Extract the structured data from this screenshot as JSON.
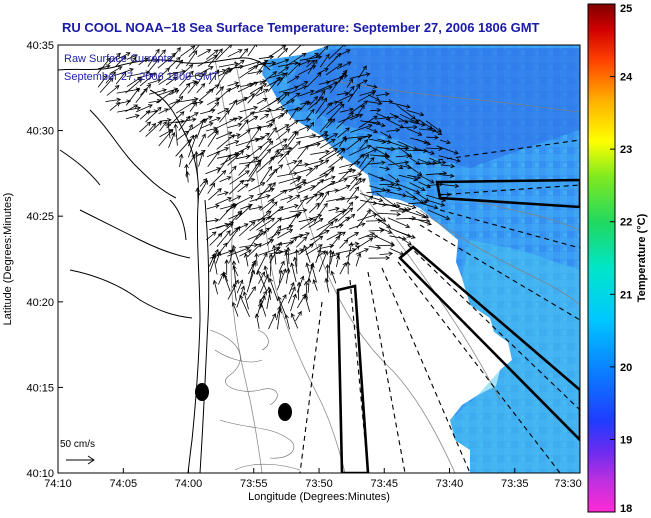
{
  "title": "RU COOL  NOAA−18  Sea Surface Temperature:  September 27, 2006 1806 GMT",
  "annotation": {
    "line1": "Raw Surface Currents",
    "line2": "September 27, 2006 1800 GMT"
  },
  "axes": {
    "xlabel": "Longitude (Degrees:Minutes)",
    "ylabel": "Latitude (Degrees:Minutes)",
    "xticks": [
      {
        "lon": -74.1667,
        "label": "74:10"
      },
      {
        "lon": -74.0833,
        "label": "74:05"
      },
      {
        "lon": -74.0,
        "label": "74:00"
      },
      {
        "lon": -73.9167,
        "label": "73:55"
      },
      {
        "lon": -73.8333,
        "label": "73:50"
      },
      {
        "lon": -73.75,
        "label": "73:45"
      },
      {
        "lon": -73.6667,
        "label": "73:40"
      },
      {
        "lon": -73.5833,
        "label": "73:35"
      },
      {
        "lon": -73.5,
        "label": "73:30"
      }
    ],
    "yticks": [
      {
        "lat": 40.5833,
        "label": "40:35"
      },
      {
        "lat": 40.5,
        "label": "40:30"
      },
      {
        "lat": 40.4167,
        "label": "40:25"
      },
      {
        "lat": 40.3333,
        "label": "40:20"
      },
      {
        "lat": 40.25,
        "label": "40:15"
      },
      {
        "lat": 40.1667,
        "label": "40:10"
      }
    ],
    "lon_range": [
      -74.1667,
      -73.5
    ],
    "lat_range": [
      40.1667,
      40.5833
    ]
  },
  "scale_label": "50 cm/s",
  "colorbar": {
    "label": "Temperature (°C)",
    "min": 18,
    "max": 25,
    "ticks": [
      "18",
      "19",
      "20",
      "21",
      "22",
      "23",
      "24",
      "25"
    ],
    "colors": [
      "#ff2ad4",
      "#8a2be2",
      "#1f3cff",
      "#00aaff",
      "#00e0e0",
      "#20d060",
      "#a0ee20",
      "#ffff00",
      "#ffb000",
      "#ff4000",
      "#c00000",
      "#8b0000"
    ]
  },
  "sst_colors": {
    "deep": "#2f7bf2",
    "mid": "#3aa3f5",
    "light": "#4cc4f2"
  }
}
